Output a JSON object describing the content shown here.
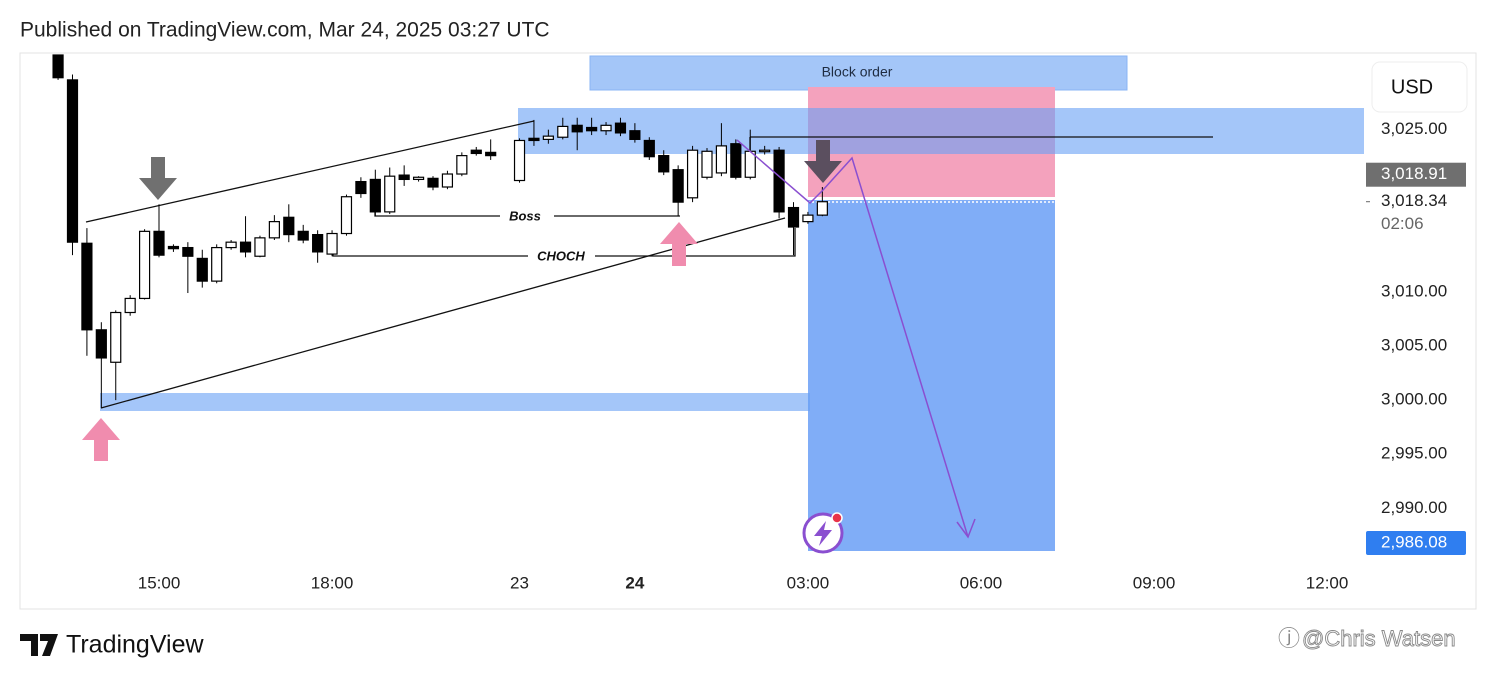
{
  "header": {
    "title": "Published on TradingView.com, Mar 24, 2025 03:27 UTC"
  },
  "chart_data": {
    "type": "candlestick",
    "currency": "USD",
    "up_color": "#ffffff",
    "down_color": "#000000",
    "candles": {
      "x": [
        -7,
        -6,
        -5,
        -4,
        -3,
        -2,
        -1,
        0,
        1,
        2,
        3,
        4,
        5,
        6,
        7,
        8,
        9,
        10,
        11,
        12,
        13,
        14,
        15,
        16,
        17,
        18,
        19,
        20,
        21,
        22,
        23,
        25,
        26,
        27,
        28,
        29,
        30,
        31,
        32,
        33,
        34,
        35,
        36,
        37,
        38,
        39,
        40,
        41,
        42,
        43,
        44,
        45,
        46
      ],
      "open": [
        3031.9,
        3029.6,
        3014.5,
        3006.5,
        3003.5,
        3008.1,
        3009.4,
        3015.6,
        3014.2,
        3014.1,
        3013.1,
        3011.0,
        3014.1,
        3014.6,
        3013.3,
        3015.0,
        3016.9,
        3015.6,
        3015.3,
        3013.5,
        3015.4,
        3020.2,
        3020.4,
        3017.4,
        3020.8,
        3020.4,
        3020.5,
        3019.7,
        3020.9,
        3023.1,
        3022.9,
        3020.3,
        3024.2,
        3024.1,
        3024.3,
        3025.4,
        3025.2,
        3024.9,
        3025.6,
        3024.9,
        3024.0,
        3022.6,
        3021.3,
        3018.7,
        3020.6,
        3021.0,
        3023.7,
        3020.6,
        3023.0,
        3023.1,
        3017.8,
        3016.5,
        3017.1
      ],
      "high": [
        3031.9,
        3030.1,
        3015.9,
        3007.2,
        3008.3,
        3009.7,
        3015.8,
        3018.1,
        3014.4,
        3014.6,
        3013.9,
        3014.4,
        3014.8,
        3017.0,
        3015.2,
        3017.1,
        3018.1,
        3016.2,
        3015.7,
        3015.7,
        3019.0,
        3020.6,
        3021.3,
        3021.5,
        3021.7,
        3020.7,
        3020.7,
        3021.2,
        3022.9,
        3023.4,
        3024.1,
        3024.2,
        3025.9,
        3025.0,
        3026.1,
        3026.1,
        3026.1,
        3025.7,
        3026.1,
        3025.6,
        3024.3,
        3023.1,
        3021.7,
        3023.5,
        3023.3,
        3025.6,
        3024.1,
        3025.0,
        3023.5,
        3023.4,
        3018.3,
        3017.4,
        3019.7
      ],
      "low": [
        3029.6,
        3013.4,
        3004.1,
        2999.3,
        3000.0,
        3007.8,
        3009.3,
        3013.2,
        3013.7,
        3009.9,
        3010.4,
        3010.8,
        3013.9,
        3013.2,
        3013.2,
        3014.8,
        3014.6,
        3014.5,
        3012.7,
        3013.3,
        3015.2,
        3018.7,
        3017.0,
        3017.2,
        3019.8,
        3020.2,
        3019.4,
        3019.5,
        3020.7,
        3022.6,
        3022.2,
        3020.1,
        3023.5,
        3023.7,
        3024.1,
        3023.1,
        3024.5,
        3024.5,
        3024.4,
        3023.8,
        3022.2,
        3020.8,
        3017.0,
        3018.3,
        3020.4,
        3020.7,
        3020.4,
        3020.4,
        3022.7,
        3016.8,
        3013.4,
        3016.3,
        3017.0
      ],
      "close": [
        3029.8,
        3014.6,
        3006.5,
        3003.9,
        3008.1,
        3009.4,
        3015.6,
        3013.4,
        3014.0,
        3013.3,
        3011.0,
        3014.1,
        3014.6,
        3013.7,
        3015.0,
        3016.5,
        3015.3,
        3014.8,
        3013.7,
        3015.4,
        3018.8,
        3019.1,
        3017.4,
        3020.7,
        3020.4,
        3020.6,
        3019.7,
        3020.9,
        3022.6,
        3022.8,
        3022.6,
        3024.0,
        3024.0,
        3024.4,
        3025.3,
        3024.8,
        3024.9,
        3025.4,
        3024.7,
        3024.1,
        3022.5,
        3021.1,
        3018.3,
        3023.1,
        3023.0,
        3023.5,
        3020.6,
        3023.0,
        3023.1,
        3017.4,
        3016.0,
        3017.1,
        3018.34
      ]
    },
    "xlim": [
      -9.64,
      83.7
    ],
    "xticks": [
      {
        "value": 0,
        "label": "15:00"
      },
      {
        "value": 12,
        "label": "18:00"
      },
      {
        "value": 25,
        "label": "23"
      },
      {
        "value": 33,
        "label": "24",
        "bold": true
      },
      {
        "value": 45,
        "label": "03:00"
      },
      {
        "value": 57,
        "label": "06:00"
      },
      {
        "value": 69,
        "label": "09:00"
      },
      {
        "value": 81,
        "label": "12:00"
      }
    ],
    "ylim": [
      2984.3,
      3031.9
    ],
    "yticks": [
      {
        "value": 2990,
        "label": "2,990.00"
      },
      {
        "value": 2995,
        "label": "2,995.00"
      },
      {
        "value": 3000,
        "label": "3,000.00"
      },
      {
        "value": 3005,
        "label": "3,005.00"
      },
      {
        "value": 3010,
        "label": "3,010.00"
      },
      {
        "value": 3025,
        "label": "3,025.00"
      }
    ],
    "stop_price": {
      "value": 3018.91,
      "label": "3,018.91",
      "color": "#6f6f6f"
    },
    "last_price": {
      "value": 3018.34,
      "label": "3,018.34"
    },
    "countdown": "02:06",
    "target_price": {
      "value": 2986.08,
      "label": "2,986.08",
      "color": "#2f7ef0"
    },
    "annotations": {
      "block_order": "Block order",
      "boss": "Boss",
      "choch": "CHOCH"
    }
  },
  "footer": {
    "brand": "TradingView",
    "watermark": "@Chris Watsen"
  }
}
